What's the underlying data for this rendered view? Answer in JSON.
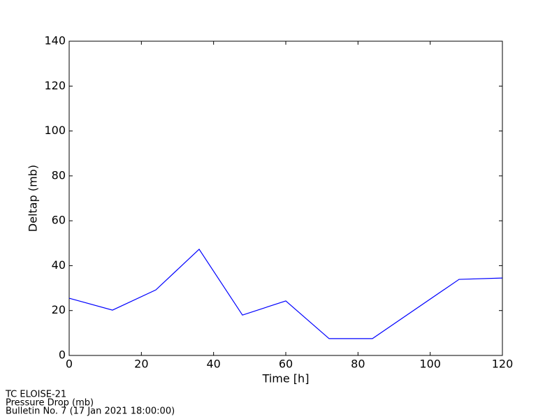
{
  "chart_data": {
    "type": "line",
    "x_label": "Time [h]",
    "y_label": "Deltap (mb)",
    "x": [
      0,
      12,
      24,
      36,
      48,
      60,
      72,
      84,
      108,
      120
    ],
    "series": [
      {
        "color": "#0000ff",
        "values": [
          25.5,
          20.2,
          29.2,
          47.3,
          18,
          24.3,
          7.5,
          7.5,
          33.9,
          34.5
        ]
      }
    ],
    "xlim": [
      0,
      120
    ],
    "xticks": [
      0,
      20,
      40,
      60,
      80,
      100,
      120
    ],
    "ylim": [
      0,
      140
    ],
    "yticks": [
      0,
      20,
      40,
      60,
      80,
      100,
      120,
      140
    ],
    "grid": false
  },
  "footer": {
    "lines": [
      "TC ELOISE-21",
      "Pressure Drop (mb)",
      "Bulletin No. 7 (17 Jan 2021  18:00:00)"
    ]
  }
}
